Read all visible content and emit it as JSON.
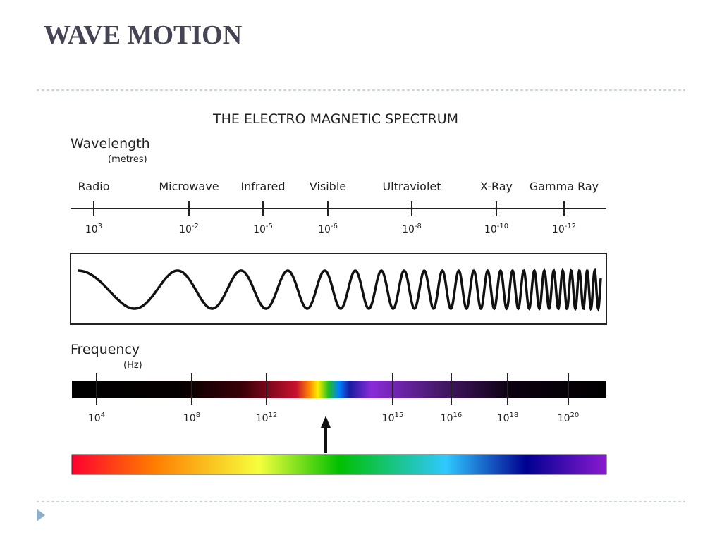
{
  "header": {
    "title": "WAVE MOTION"
  },
  "diagram": {
    "title": "THE ELECTRO MAGNETIC SPECTRUM",
    "wavelength_label": "Wavelength",
    "wavelength_unit": "(metres)",
    "bands": [
      "Radio",
      "Microwave",
      "Infrared",
      "Visible",
      "Ultraviolet",
      "X-Ray",
      "Gamma Ray"
    ],
    "wavelengths": [
      {
        "base": "10",
        "exp": "3"
      },
      {
        "base": "10",
        "exp": "-2"
      },
      {
        "base": "10",
        "exp": "-5"
      },
      {
        "base": "10",
        "exp": "-6"
      },
      {
        "base": "10",
        "exp": "-8"
      },
      {
        "base": "10",
        "exp": "-10"
      },
      {
        "base": "10",
        "exp": "-12"
      }
    ],
    "frequency_label": "Frequency",
    "frequency_unit": "(Hz)",
    "frequencies": [
      {
        "base": "10",
        "exp": "4"
      },
      {
        "base": "10",
        "exp": "8"
      },
      {
        "base": "10",
        "exp": "12"
      },
      {
        "base": "10",
        "exp": "15"
      },
      {
        "base": "10",
        "exp": "16"
      },
      {
        "base": "10",
        "exp": "18"
      },
      {
        "base": "10",
        "exp": "20"
      }
    ]
  }
}
